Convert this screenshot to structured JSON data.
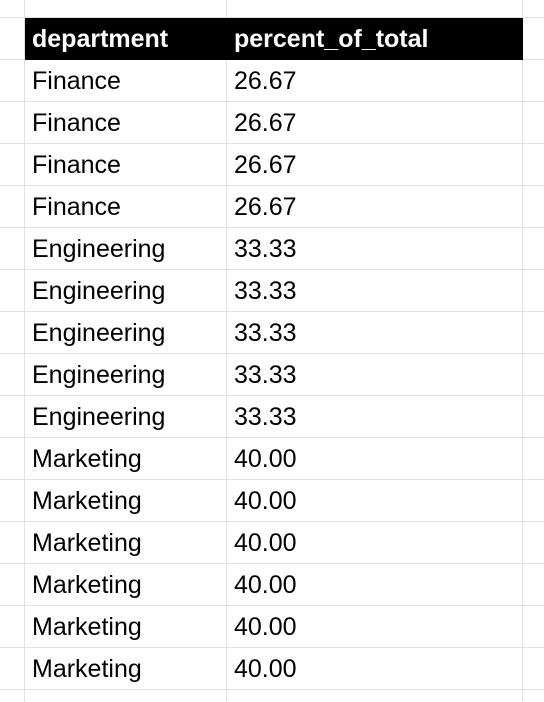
{
  "table": {
    "headers": {
      "department": "department",
      "percent_of_total": "percent_of_total"
    },
    "rows": [
      {
        "department": "Finance",
        "percent_of_total": "26.67"
      },
      {
        "department": "Finance",
        "percent_of_total": "26.67"
      },
      {
        "department": "Finance",
        "percent_of_total": "26.67"
      },
      {
        "department": "Finance",
        "percent_of_total": "26.67"
      },
      {
        "department": "Engineering",
        "percent_of_total": "33.33"
      },
      {
        "department": "Engineering",
        "percent_of_total": "33.33"
      },
      {
        "department": "Engineering",
        "percent_of_total": "33.33"
      },
      {
        "department": "Engineering",
        "percent_of_total": "33.33"
      },
      {
        "department": "Engineering",
        "percent_of_total": "33.33"
      },
      {
        "department": "Marketing",
        "percent_of_total": "40.00"
      },
      {
        "department": "Marketing",
        "percent_of_total": "40.00"
      },
      {
        "department": "Marketing",
        "percent_of_total": "40.00"
      },
      {
        "department": "Marketing",
        "percent_of_total": "40.00"
      },
      {
        "department": "Marketing",
        "percent_of_total": "40.00"
      },
      {
        "department": "Marketing",
        "percent_of_total": "40.00"
      }
    ]
  },
  "colors": {
    "header_background": "#000000",
    "header_text": "#ffffff",
    "gridline": "#e2e2e2",
    "cell_text": "#000000"
  }
}
